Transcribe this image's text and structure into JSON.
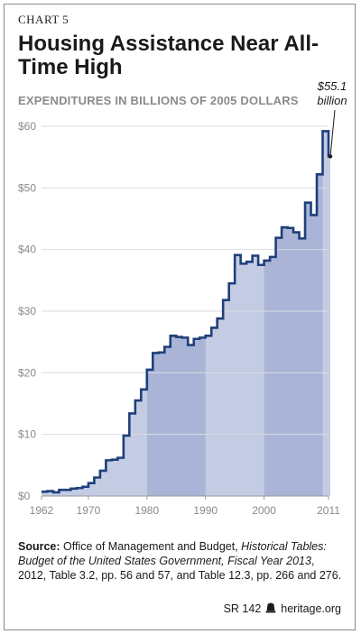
{
  "header": {
    "chart_label": "CHART 5",
    "title": "Housing Assistance Near All-Time High",
    "subtitle": "EXPENDITURES IN BILLIONS OF 2005 DOLLARS"
  },
  "annotation": {
    "value_text": "$55.1",
    "unit_text": "billion"
  },
  "source": {
    "label": "Source:",
    "text_1": " Office of Management and Budget, ",
    "title_italic": "Historical Tables: Budget of the United States Government, Fiscal Year 2013",
    "text_2": ", 2012, Table 3.2, pp. 56 and 57, and Table 12.3, pp. 266 and 276."
  },
  "footer": {
    "report_id": "SR 142",
    "site": "heritage.org"
  },
  "colors": {
    "line": "#1f3f7a",
    "fill_light": "#c4cce4",
    "fill_dark": "#a9b4d6",
    "grid": "#d9dbe3",
    "axis_text": "#8a8a8a"
  },
  "chart_data": {
    "type": "area",
    "step": true,
    "title": "Housing Assistance Near All-Time High",
    "subtitle": "EXPENDITURES IN BILLIONS OF 2005 DOLLARS",
    "xlim": [
      1962,
      2011
    ],
    "ylim": [
      0,
      60
    ],
    "x_ticks": [
      1962,
      1970,
      1980,
      1990,
      2000,
      2011
    ],
    "y_ticks": [
      0,
      10,
      20,
      30,
      40,
      50,
      60
    ],
    "y_tick_labels": [
      "$0",
      "$10",
      "$20",
      "$30",
      "$40",
      "$50",
      "$60"
    ],
    "x_tick_labels": [
      "1962",
      "1970",
      "1980",
      "1990",
      "2000",
      "2011"
    ],
    "shaded_decades": [
      [
        1980,
        1990
      ],
      [
        2000,
        2010
      ]
    ],
    "grid": true,
    "x": [
      1962,
      1963,
      1964,
      1965,
      1966,
      1967,
      1968,
      1969,
      1970,
      1971,
      1972,
      1973,
      1974,
      1975,
      1976,
      1977,
      1978,
      1979,
      1980,
      1981,
      1982,
      1983,
      1984,
      1985,
      1986,
      1987,
      1988,
      1989,
      1990,
      1991,
      1992,
      1993,
      1994,
      1995,
      1996,
      1997,
      1998,
      1999,
      2000,
      2001,
      2002,
      2003,
      2004,
      2005,
      2006,
      2007,
      2008,
      2009,
      2010,
      2011
    ],
    "y": [
      0.7,
      0.8,
      0.6,
      1.0,
      1.0,
      1.2,
      1.3,
      1.5,
      2.1,
      3.0,
      4.1,
      5.8,
      5.9,
      6.2,
      9.8,
      13.4,
      15.5,
      17.3,
      20.5,
      23.2,
      23.3,
      24.2,
      26.0,
      25.8,
      25.7,
      24.5,
      25.5,
      25.7,
      26.0,
      27.3,
      28.8,
      31.8,
      34.5,
      39.1,
      37.7,
      38.0,
      39.0,
      37.5,
      38.2,
      38.8,
      41.9,
      43.6,
      43.5,
      42.8,
      41.8,
      47.6,
      45.6,
      52.2,
      59.2,
      55.1
    ],
    "annotation": "$55.1 billion"
  }
}
